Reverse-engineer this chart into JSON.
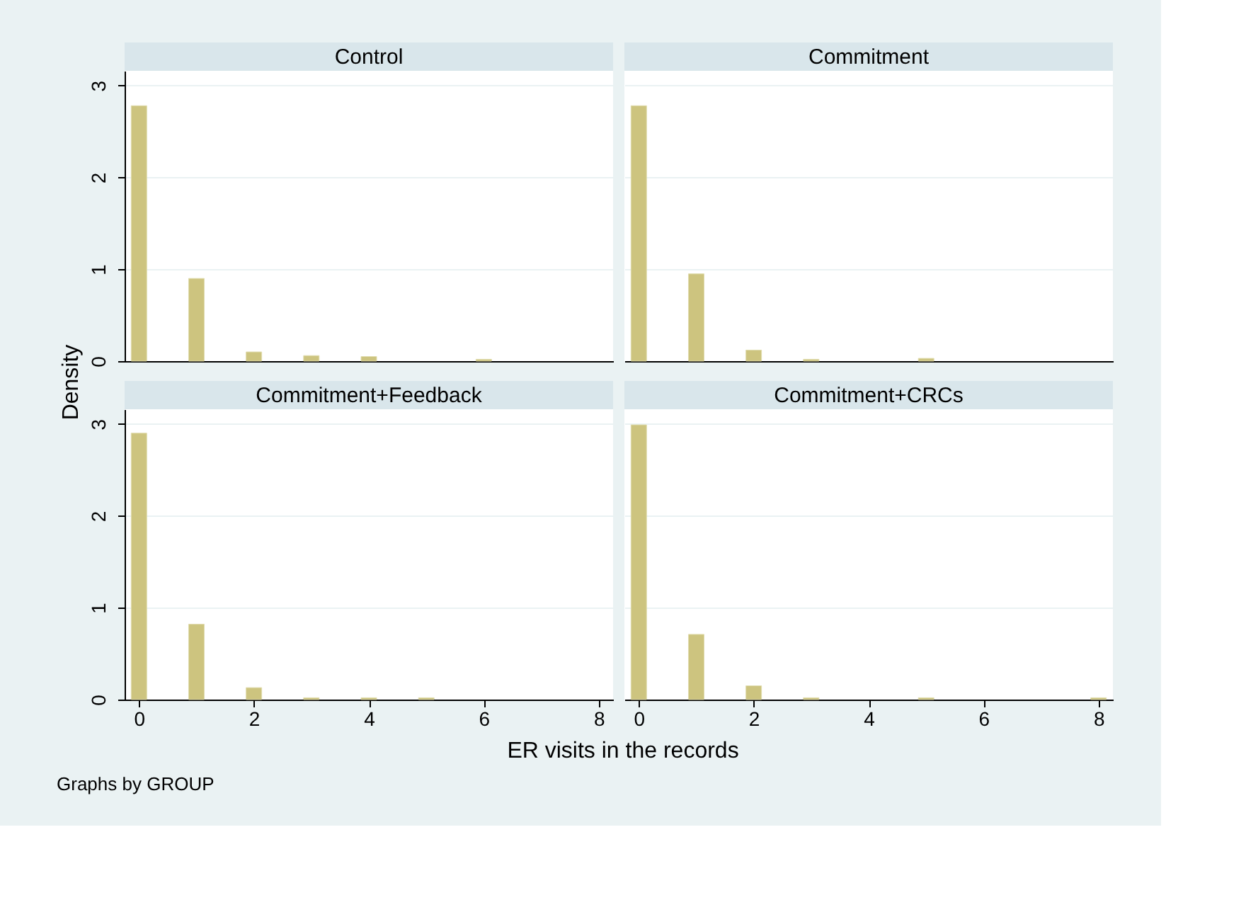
{
  "chart_data": [
    {
      "type": "bar",
      "title": "Control",
      "ylabel": "Density",
      "x": [
        0,
        1,
        2,
        3,
        4,
        6
      ],
      "values": [
        2.78,
        0.9,
        0.1,
        0.06,
        0.05,
        0.02
      ],
      "color": "#cdc47f",
      "xlim": [
        -0.25,
        8.25
      ],
      "ylim": [
        0,
        3.16
      ],
      "xticks": [
        0,
        2,
        4,
        6,
        8
      ],
      "yticks": [
        0,
        1,
        2,
        3
      ],
      "grid": "y",
      "tick_labels": "y"
    },
    {
      "type": "bar",
      "title": "Commitment",
      "x": [
        0,
        1,
        2,
        3,
        5
      ],
      "values": [
        2.78,
        0.95,
        0.12,
        0.02,
        0.03
      ],
      "color": "#cdc47f",
      "xlim": [
        -0.25,
        8.25
      ],
      "ylim": [
        0,
        3.16
      ],
      "xticks": [
        0,
        2,
        4,
        6,
        8
      ],
      "yticks": [
        0,
        1,
        2,
        3
      ],
      "grid": "y",
      "tick_labels": false
    },
    {
      "type": "bar",
      "title": "Commitment+Feedback",
      "xlabel": "ER visits in the records",
      "annotations": [
        "Graphs by GROUP"
      ],
      "x": [
        0,
        1,
        2,
        3,
        4,
        5
      ],
      "values": [
        2.9,
        0.82,
        0.13,
        0.02,
        0.02,
        0.02
      ],
      "color": "#cdc47f",
      "xlim": [
        -0.25,
        8.25
      ],
      "ylim": [
        0,
        3.16
      ],
      "xticks": [
        0,
        2,
        4,
        6,
        8
      ],
      "yticks": [
        0,
        1,
        2,
        3
      ],
      "grid": "y"
    },
    {
      "type": "bar",
      "title": "Commitment+CRCs",
      "x": [
        0,
        1,
        2,
        3,
        5,
        8
      ],
      "values": [
        2.99,
        0.71,
        0.15,
        0.02,
        0.02,
        0.02
      ],
      "color": "#cdc47f",
      "xlim": [
        -0.25,
        8.25
      ],
      "ylim": [
        0,
        3.16
      ],
      "xticks": [
        0,
        2,
        4,
        6,
        8
      ],
      "yticks": [
        0,
        1,
        2,
        3
      ],
      "grid": "y",
      "tick_labels": "x"
    }
  ]
}
